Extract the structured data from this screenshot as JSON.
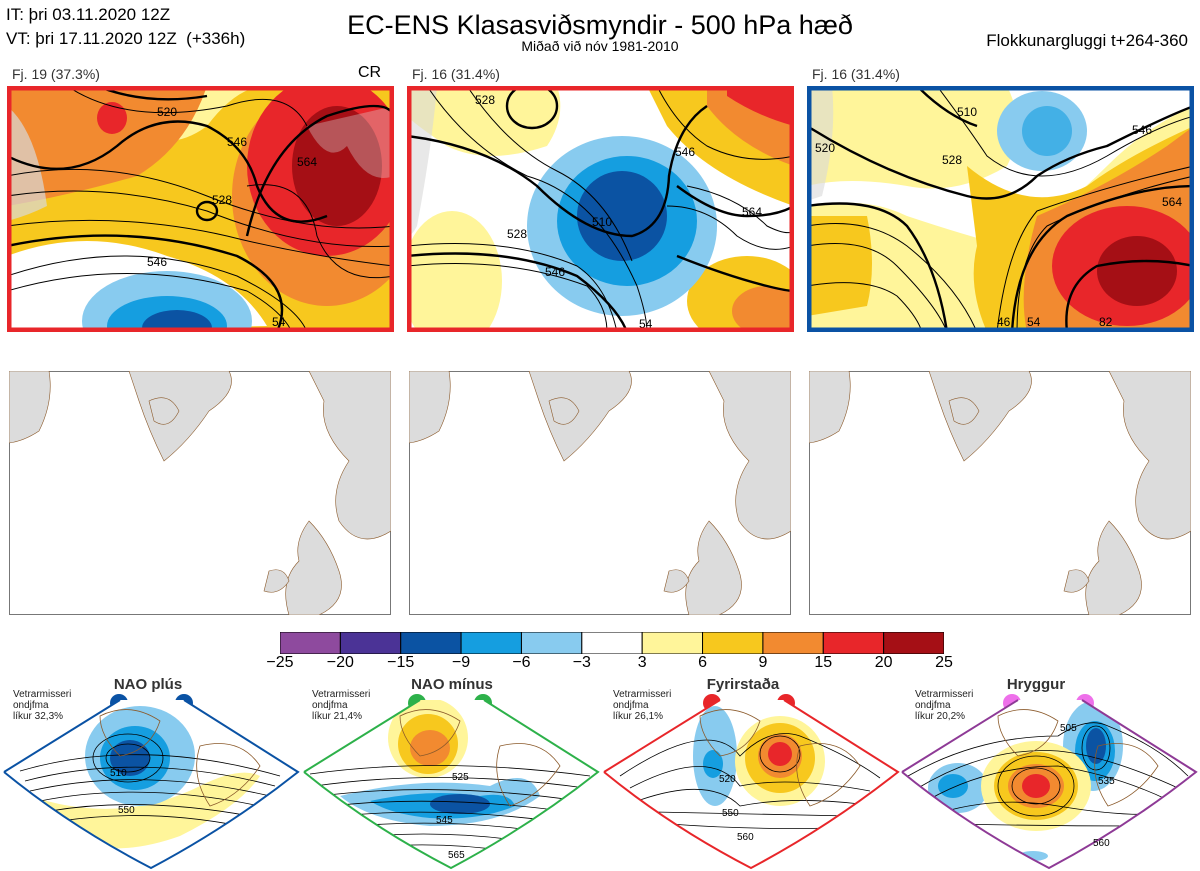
{
  "header": {
    "it_line": "IT: þri 03.11.2020 12Z",
    "vt_line": "VT: þri 17.11.2020 12Z  (+336h)",
    "title": "EC-ENS Klasasviðsmyndir - 500 hPa hæð",
    "subtitle": "Miðað við nóv 1981-2010",
    "window_label": "Flokkunargluggi t+264-360"
  },
  "clusters": [
    {
      "label": "Fj. 19 (37.3%)",
      "tag": "CR",
      "border_color": "#e8262a",
      "contour_labels": [
        "520",
        "528",
        "546",
        "564",
        "546",
        "54"
      ]
    },
    {
      "label": "Fj. 16 (31.4%)",
      "tag": "",
      "border_color": "#e8262a",
      "contour_labels": [
        "528",
        "546",
        "510",
        "528",
        "546",
        "564",
        "54"
      ]
    },
    {
      "label": "Fj. 16 (31.4%)",
      "tag": "",
      "border_color": "#0a52a4",
      "contour_labels": [
        "510",
        "520",
        "528",
        "546",
        "564",
        "46",
        "54",
        "82"
      ]
    }
  ],
  "colorbar": {
    "colors": [
      "#8e4a9e",
      "#4b3396",
      "#0b53a3",
      "#159ee0",
      "#88cbef",
      "#ffffff",
      "#fff59a",
      "#f7c81e",
      "#f28a30",
      "#e8262a",
      "#a50f15"
    ],
    "ticks": [
      "−25",
      "−20",
      "−15",
      "−9",
      "−6",
      "−3",
      "3",
      "6",
      "9",
      "15",
      "20",
      "25"
    ]
  },
  "regimes": [
    {
      "title": "NAO plús",
      "note": "Vetrarmisseri\nondjfma\nlíkur 32,3%",
      "color": "#0a52a4",
      "contour_labels": [
        "510",
        "550"
      ]
    },
    {
      "title": "NAO mínus",
      "note": "Vetrarmisseri\nondjfma\nlíkur 21,4%",
      "color": "#2db14a",
      "contour_labels": [
        "525",
        "545",
        "565"
      ]
    },
    {
      "title": "Fyrirstaða",
      "note": "Vetrarmisseri\nondjfma\nlíkur 26,1%",
      "color": "#e8262a",
      "contour_labels": [
        "520",
        "550",
        "560"
      ]
    },
    {
      "title": "Hryggur",
      "note": "Vetrarmisseri\nondjfma\nlíkur 20,2%",
      "color": "#8e3a96",
      "contour_labels": [
        "505",
        "535",
        "560"
      ]
    }
  ]
}
